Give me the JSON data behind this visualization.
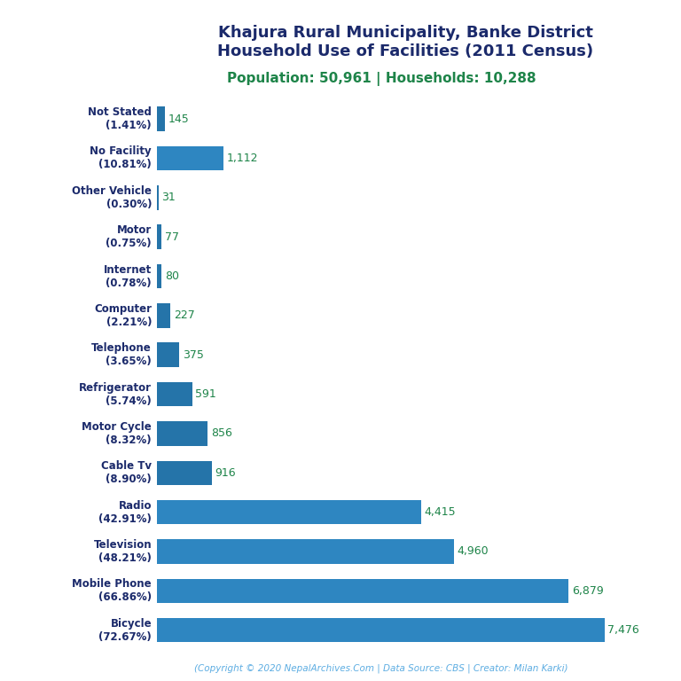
{
  "title_line1": "Khajura Rural Municipality, Banke District",
  "title_line2": "Household Use of Facilities (2011 Census)",
  "subtitle": "Population: 50,961 | Households: 10,288",
  "footer": "(Copyright © 2020 NepalArchives.Com | Data Source: CBS | Creator: Milan Karki)",
  "categories": [
    "Bicycle\n(72.67%)",
    "Mobile Phone\n(66.86%)",
    "Television\n(48.21%)",
    "Radio\n(42.91%)",
    "Cable Tv\n(8.90%)",
    "Motor Cycle\n(8.32%)",
    "Refrigerator\n(5.74%)",
    "Telephone\n(3.65%)",
    "Computer\n(2.21%)",
    "Internet\n(0.78%)",
    "Motor\n(0.75%)",
    "Other Vehicle\n(0.30%)",
    "No Facility\n(10.81%)",
    "Not Stated\n(1.41%)"
  ],
  "values": [
    7476,
    6879,
    4960,
    4415,
    916,
    856,
    591,
    375,
    227,
    80,
    77,
    31,
    1112,
    145
  ],
  "bar_color_small": "#2574A9",
  "bar_color_large": "#2E86C1",
  "value_color": "#1E8449",
  "title_color": "#1B2A6B",
  "subtitle_color": "#1E8449",
  "footer_color": "#5DADE2",
  "background_color": "#FFFFFF",
  "xlim": [
    0,
    8300
  ],
  "figsize": [
    7.68,
    7.68
  ],
  "dpi": 100
}
